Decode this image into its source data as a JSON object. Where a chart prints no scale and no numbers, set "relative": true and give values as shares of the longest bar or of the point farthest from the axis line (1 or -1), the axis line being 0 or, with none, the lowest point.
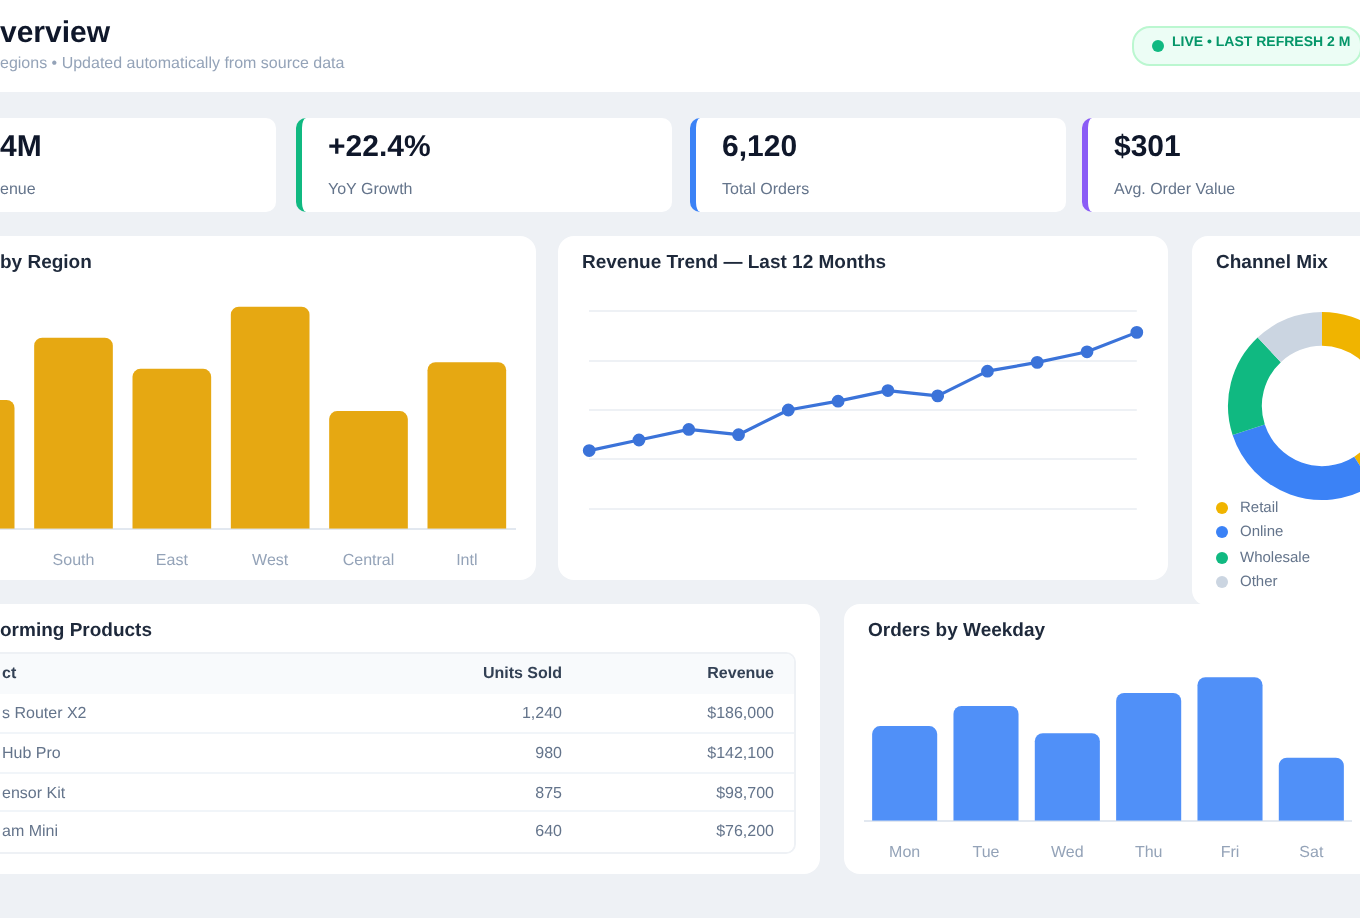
{
  "chart_data": [
    {
      "type": "other",
      "title": "verview",
      "subtitle": "egions • Updated automatically from source data",
      "annotations": [
        "LIVE • LAST REFRESH 2 M",
        "4M",
        "enue",
        "+22.4%",
        "YoY Growth",
        "6,120",
        "Total Orders",
        "$301",
        "Avg. Order Value"
      ]
    },
    {
      "type": "bar",
      "title": "by Region",
      "categories": [
        null,
        "South",
        "East",
        "West",
        "Central",
        "Intl"
      ],
      "values": [
        0.58,
        0.86,
        0.72,
        1,
        0.53,
        0.75
      ],
      "color": "#e6a812",
      "relative": true,
      "grid": false,
      "legend": false
    },
    {
      "type": "line",
      "title": "Revenue Trend — Last 12 Months",
      "categories": [
        null,
        null,
        null,
        null,
        null,
        null,
        null,
        null,
        null,
        null,
        null,
        null
      ],
      "values": [
        0.33,
        0.39,
        0.45,
        0.42,
        0.56,
        0.61,
        0.67,
        0.64,
        0.78,
        0.83,
        0.89,
        1
      ],
      "color": "#3b73d9",
      "relative": true,
      "grid": "y",
      "marker": "circle",
      "line_style": "solid",
      "legend": false
    },
    {
      "type": "donut",
      "title": "Channel Mix",
      "categories": [
        "Retail",
        "Online",
        "Wholesale",
        "Other"
      ],
      "values": [
        41,
        29,
        18,
        12
      ],
      "colors": [
        "#f0b400",
        "#3b82f6",
        "#10b981",
        "#cbd5e1"
      ],
      "legend": "bottom"
    },
    {
      "type": "other",
      "title": "orming Products",
      "annotations": [
        "ct",
        "Units Sold",
        "Revenue",
        "s Router X2",
        "1,240",
        "$186,000",
        "Hub Pro",
        "980",
        "$142,100",
        "ensor Kit",
        "875",
        "$98,700",
        "am Mini",
        "640",
        "$76,200"
      ]
    },
    {
      "type": "bar",
      "title": "Orders by Weekday",
      "categories": [
        "Mon",
        "Tue",
        "Wed",
        "Thu",
        "Fri",
        "Sat"
      ],
      "values": [
        0.66,
        0.8,
        0.61,
        0.89,
        1,
        0.44
      ],
      "color": "#5090f8",
      "relative": true,
      "grid": false,
      "legend": false
    }
  ]
}
